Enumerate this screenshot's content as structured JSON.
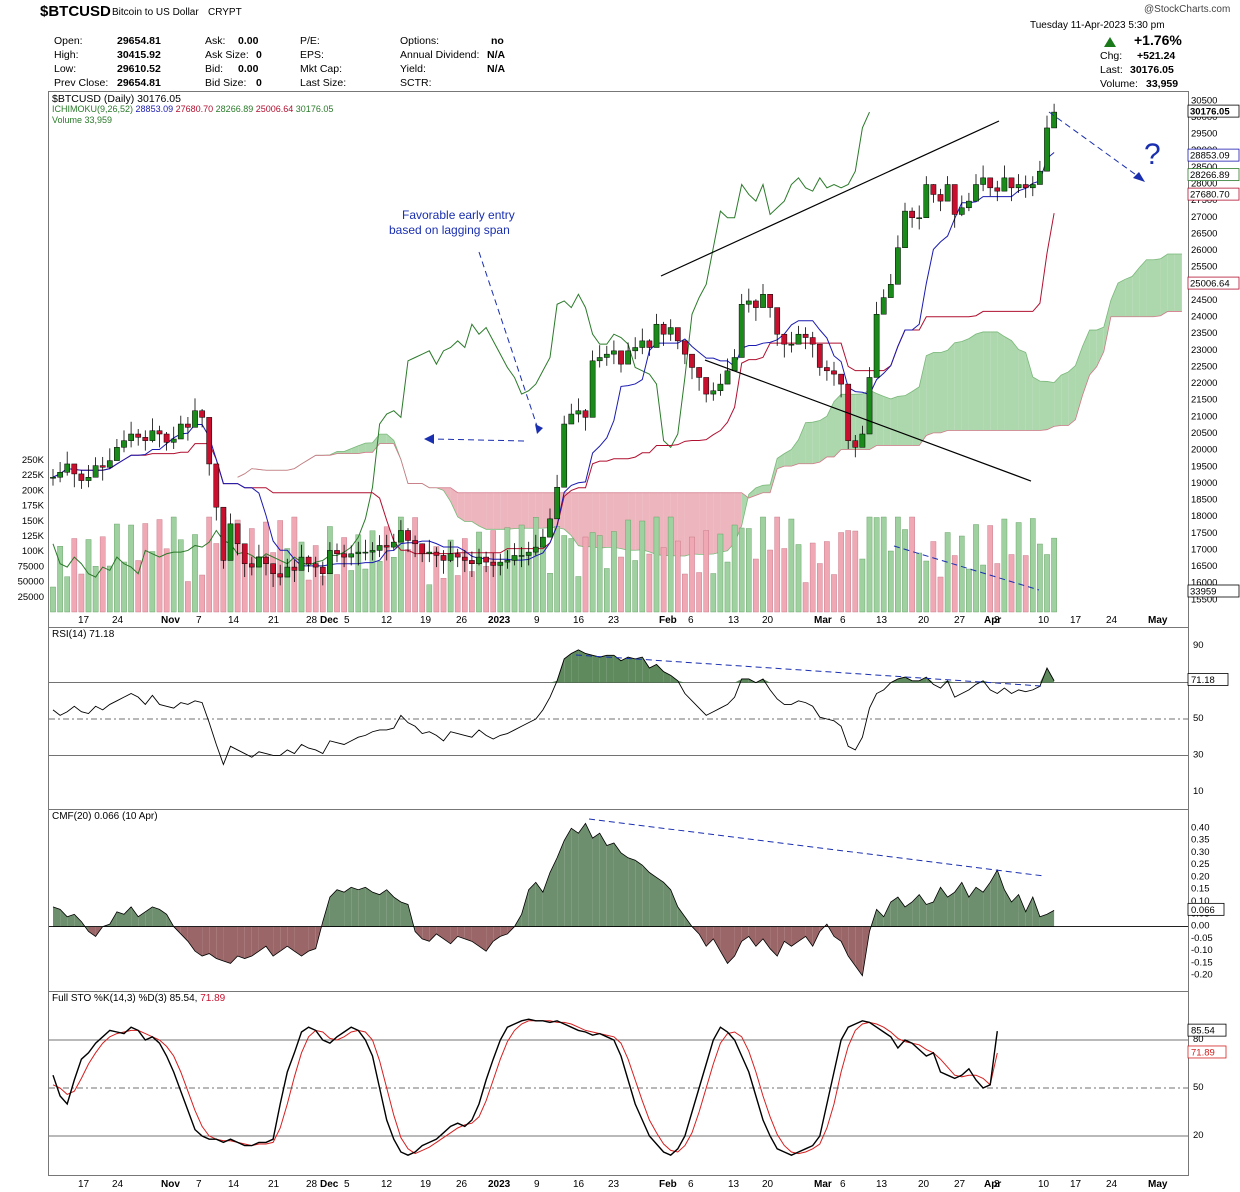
{
  "header": {
    "symbol": "$BTCUSD",
    "name": "Bitcoin to US Dollar",
    "exchange": "CRYPT",
    "watermark": "@StockCharts.com",
    "datetime": "Tuesday  11-Apr-2023  5:30 pm"
  },
  "quote": {
    "open_label": "Open:",
    "open": "29654.81",
    "high_label": "High:",
    "high": "30415.92",
    "low_label": "Low:",
    "low": "29610.52",
    "prev_label": "Prev Close:",
    "prev": "29654.81",
    "ask_label": "Ask:",
    "ask": "0.00",
    "asksize_label": "Ask Size:",
    "asksize": "0",
    "bid_label": "Bid:",
    "bid": "0.00",
    "bidsize_label": "Bid Size:",
    "bidsize": "0",
    "pe_label": "P/E:",
    "eps_label": "EPS:",
    "mktcap_label": "Mkt Cap:",
    "lastsize_label": "Last Size:",
    "options_label": "Options:",
    "options": "no",
    "div_label": "Annual Dividend:",
    "div": "N/A",
    "yield_label": "Yield:",
    "yield": "N/A",
    "sctr_label": "SCTR:",
    "pct_change": "+1.76%",
    "chg_label": "Chg:",
    "chg": "+521.24",
    "last_label": "Last:",
    "last": "30176.05",
    "vol_label": "Volume:",
    "vol": "33,959"
  },
  "legend": {
    "price": "$BTCUSD (Daily) 30176.05",
    "ichimoku_name": "ICHIMOKU(9,26,52)",
    "ichimoku_v1": "28853.09",
    "ichimoku_v2": "27680.70",
    "ichimoku_v3": "28266.89",
    "ichimoku_v4": "25006.64",
    "ichimoku_v5": "30176.05",
    "volume": "Volume 33,959"
  },
  "annotations": {
    "entry_line1": "Favorable early entry",
    "entry_line2": "based on lagging span",
    "question": "?"
  },
  "colors": {
    "up": "#1a8a1a",
    "down": "#c8102e",
    "tenkan": "#1a1ab0",
    "kijun": "#b01030",
    "lagging": "#2a7a2a",
    "cloud_bull": "#9fd09f",
    "cloud_bear": "#eaa8b2",
    "annotation": "#1a2fb0"
  },
  "chart_data": [
    {
      "type": "candlestick",
      "title": "$BTCUSD (Daily) 30176.05",
      "ylim": [
        15300,
        30600
      ],
      "yticks": [
        15500,
        16000,
        16500,
        17000,
        17500,
        18000,
        18500,
        19000,
        19500,
        20000,
        20500,
        21000,
        21500,
        22000,
        22500,
        23000,
        23500,
        24000,
        24500,
        25000,
        25500,
        26000,
        26500,
        27000,
        27500,
        28000,
        28500,
        29000,
        29500,
        30000,
        30500
      ],
      "x_tick_labels": [
        "17",
        "24",
        "Nov",
        "7",
        "14",
        "21",
        "28",
        "Dec",
        "5",
        "12",
        "19",
        "26",
        "2023",
        "9",
        "16",
        "23",
        "Feb",
        "6",
        "13",
        "20",
        "Mar",
        "6",
        "13",
        "20",
        "27",
        "Apr",
        "3",
        "10",
        "17",
        "24",
        "May"
      ],
      "price_tags": [
        "30176.05",
        "28853.09",
        "28266.89",
        "27680.70",
        "25006.64"
      ],
      "close": [
        19200,
        19350,
        19600,
        19300,
        19100,
        19200,
        19550,
        19500,
        19700,
        20100,
        20300,
        20500,
        20400,
        20300,
        20600,
        20500,
        20250,
        20350,
        20800,
        20700,
        21200,
        21000,
        19600,
        18300,
        16700,
        17800,
        17200,
        16600,
        16500,
        16800,
        16600,
        16300,
        16200,
        16500,
        16400,
        16800,
        16600,
        16500,
        16300,
        17000,
        16900,
        16800,
        16900,
        16950,
        16950,
        17000,
        17150,
        17100,
        17250,
        17600,
        17300,
        17200,
        16900,
        16950,
        16850,
        16700,
        16900,
        16800,
        16700,
        16600,
        16800,
        16650,
        16550,
        16650,
        16700,
        16850,
        16850,
        16950,
        17100,
        17400,
        17950,
        18900,
        20800,
        21100,
        21200,
        21000,
        22700,
        22800,
        22900,
        23000,
        22600,
        23000,
        23100,
        23300,
        23100,
        23800,
        23500,
        23700,
        23300,
        22900,
        22500,
        22200,
        21700,
        21800,
        22000,
        22400,
        22800,
        24400,
        24500,
        24300,
        24700,
        24300,
        23500,
        23200,
        23200,
        23500,
        23400,
        23200,
        22500,
        22400,
        22300,
        22000,
        20300,
        20100,
        20500,
        22200,
        24100,
        24600,
        25000,
        26100,
        27200,
        27000,
        27000,
        28000,
        27700,
        27500,
        28000,
        27100,
        27300,
        27500,
        28000,
        28200,
        27900,
        27800,
        28200,
        27900,
        28000,
        27900,
        28000,
        28400,
        29700,
        30176
      ],
      "rsi_y": [
        -1
      ],
      "volume_y_ticks": [
        "250K",
        "225K",
        "200K",
        "175K",
        "150K",
        "125K",
        "100K",
        "75000",
        "50000",
        "25000"
      ],
      "volume_tag": "33959"
    },
    {
      "type": "line",
      "title": "RSI(14) 71.18",
      "ylim": [
        0,
        100
      ],
      "yticks": [
        10,
        30,
        50,
        70,
        90
      ],
      "value_tag": "71.18",
      "series": [
        {
          "name": "RSI(14)",
          "values": [
            55,
            52,
            54,
            57,
            54,
            53,
            57,
            55,
            58,
            60,
            62,
            64,
            62,
            58,
            63,
            58,
            57,
            56,
            59,
            58,
            60,
            59,
            48,
            36,
            25,
            35,
            33,
            31,
            29,
            32,
            31,
            30,
            30,
            33,
            31,
            36,
            34,
            33,
            31,
            38,
            37,
            36,
            38,
            40,
            41,
            43,
            44,
            44,
            45,
            52,
            48,
            46,
            42,
            43,
            41,
            38,
            43,
            42,
            41,
            40,
            44,
            41,
            39,
            41,
            42,
            44,
            46,
            48,
            50,
            55,
            62,
            71,
            83,
            86,
            88,
            86,
            85,
            84,
            85,
            85,
            82,
            84,
            83,
            84,
            78,
            80,
            76,
            74,
            71,
            64,
            60,
            56,
            52,
            54,
            56,
            58,
            62,
            72,
            72,
            70,
            72,
            66,
            61,
            58,
            58,
            60,
            59,
            57,
            51,
            50,
            49,
            46,
            35,
            33,
            40,
            56,
            64,
            66,
            70,
            72,
            73,
            71,
            71,
            73,
            69,
            67,
            71,
            62,
            64,
            66,
            69,
            71,
            66,
            64,
            67,
            64,
            66,
            65,
            66,
            68,
            78,
            71
          ]
        }
      ]
    },
    {
      "type": "area",
      "title": "CMF(20) 0.066 (10 Apr)",
      "ylim": [
        -0.25,
        0.45
      ],
      "yticks": [
        0.4,
        0.35,
        0.3,
        0.25,
        0.2,
        0.15,
        0.1,
        0.05,
        0.0,
        -0.05,
        -0.1,
        -0.15,
        -0.2
      ],
      "value_tag": "0.066",
      "series": [
        {
          "name": "CMF(20)",
          "values": [
            0.08,
            0.07,
            0.04,
            0.05,
            0.02,
            -0.02,
            -0.04,
            0.0,
            0.01,
            0.06,
            0.05,
            0.08,
            0.04,
            0.06,
            0.08,
            0.07,
            0.05,
            0.0,
            -0.03,
            -0.06,
            -0.1,
            -0.12,
            -0.11,
            -0.13,
            -0.14,
            -0.15,
            -0.12,
            -0.13,
            -0.12,
            -0.1,
            -0.08,
            -0.12,
            -0.1,
            -0.08,
            -0.1,
            -0.12,
            -0.1,
            -0.09,
            0.02,
            0.12,
            0.15,
            0.14,
            0.16,
            0.15,
            0.16,
            0.14,
            0.13,
            0.15,
            0.12,
            0.1,
            0.09,
            -0.02,
            -0.05,
            -0.06,
            -0.03,
            -0.05,
            -0.07,
            -0.04,
            -0.05,
            -0.06,
            -0.08,
            -0.1,
            -0.06,
            -0.04,
            -0.03,
            0.0,
            0.05,
            0.15,
            0.18,
            0.14,
            0.22,
            0.28,
            0.35,
            0.4,
            0.38,
            0.42,
            0.36,
            0.38,
            0.33,
            0.34,
            0.3,
            0.28,
            0.27,
            0.25,
            0.22,
            0.2,
            0.18,
            0.15,
            0.08,
            0.04,
            0.0,
            -0.03,
            -0.08,
            -0.05,
            -0.1,
            -0.15,
            -0.12,
            -0.06,
            -0.04,
            -0.08,
            -0.05,
            -0.09,
            -0.12,
            -0.06,
            -0.08,
            -0.06,
            -0.04,
            -0.08,
            -0.02,
            0.01,
            -0.04,
            -0.06,
            -0.12,
            -0.16,
            -0.2,
            -0.02,
            0.07,
            0.04,
            0.1,
            0.12,
            0.08,
            0.1,
            0.13,
            0.09,
            0.1,
            0.16,
            0.12,
            0.14,
            0.18,
            0.12,
            0.16,
            0.14,
            0.18,
            0.23,
            0.15,
            0.1,
            0.13,
            0.06,
            0.12,
            0.04,
            0.05,
            0.066
          ]
        }
      ]
    },
    {
      "type": "line",
      "title": "Full STO %K(14,3) %D(3) 85.54, 71.89",
      "ylim": [
        0,
        100
      ],
      "yticks": [
        20,
        50,
        80
      ],
      "value_tags": [
        "85.54",
        "71.89"
      ],
      "series": [
        {
          "name": "%K(14,3)",
          "values": [
            58,
            45,
            40,
            55,
            68,
            72,
            78,
            82,
            86,
            85,
            84,
            88,
            86,
            80,
            82,
            78,
            70,
            60,
            48,
            36,
            24,
            20,
            18,
            18,
            16,
            18,
            16,
            14,
            14,
            16,
            16,
            18,
            40,
            60,
            72,
            85,
            88,
            86,
            80,
            78,
            82,
            85,
            88,
            86,
            80,
            70,
            50,
            30,
            18,
            10,
            8,
            10,
            14,
            16,
            18,
            22,
            26,
            28,
            26,
            30,
            40,
            55,
            68,
            80,
            88,
            90,
            92,
            93,
            92,
            92,
            91,
            92,
            90,
            88,
            86,
            85,
            83,
            84,
            82,
            80,
            70,
            55,
            40,
            30,
            20,
            15,
            10,
            8,
            12,
            20,
            35,
            50,
            65,
            80,
            88,
            85,
            80,
            70,
            60,
            45,
            30,
            20,
            12,
            10,
            8,
            10,
            12,
            14,
            20,
            40,
            60,
            80,
            88,
            90,
            92,
            91,
            88,
            85,
            82,
            75,
            80,
            78,
            74,
            70,
            72,
            60,
            58,
            56,
            58,
            62,
            55,
            50,
            52,
            85.54
          ]
        },
        {
          "name": "%D(3)",
          "values": [
            52,
            50,
            46,
            48,
            56,
            65,
            72,
            78,
            82,
            84,
            85,
            86,
            86,
            84,
            82,
            80,
            76,
            70,
            60,
            48,
            36,
            26,
            20,
            18,
            17,
            17,
            16,
            15,
            14,
            15,
            15,
            16,
            25,
            40,
            57,
            72,
            82,
            86,
            85,
            81,
            80,
            82,
            85,
            86,
            85,
            80,
            67,
            50,
            33,
            19,
            12,
            9,
            11,
            13,
            16,
            19,
            22,
            25,
            27,
            28,
            32,
            42,
            55,
            68,
            79,
            86,
            90,
            92,
            92,
            92,
            92,
            91,
            91,
            90,
            88,
            86,
            85,
            84,
            83,
            82,
            78,
            68,
            55,
            42,
            30,
            22,
            15,
            11,
            10,
            14,
            22,
            35,
            50,
            65,
            78,
            84,
            85,
            82,
            73,
            60,
            45,
            32,
            21,
            14,
            10,
            9,
            10,
            12,
            15,
            25,
            40,
            60,
            76,
            86,
            90,
            91,
            90,
            88,
            85,
            81,
            79,
            78,
            77,
            74,
            72,
            68,
            63,
            58,
            57,
            58,
            58,
            56,
            52,
            71.89
          ]
        }
      ]
    }
  ],
  "rsi_legend": "RSI(14) 71.18",
  "cmf_legend": "CMF(20) 0.066 (10 Apr)",
  "sto_legend_prefix": "Full STO %K(14,3) %D(3) 85.54,",
  "sto_legend_d": "71.89"
}
